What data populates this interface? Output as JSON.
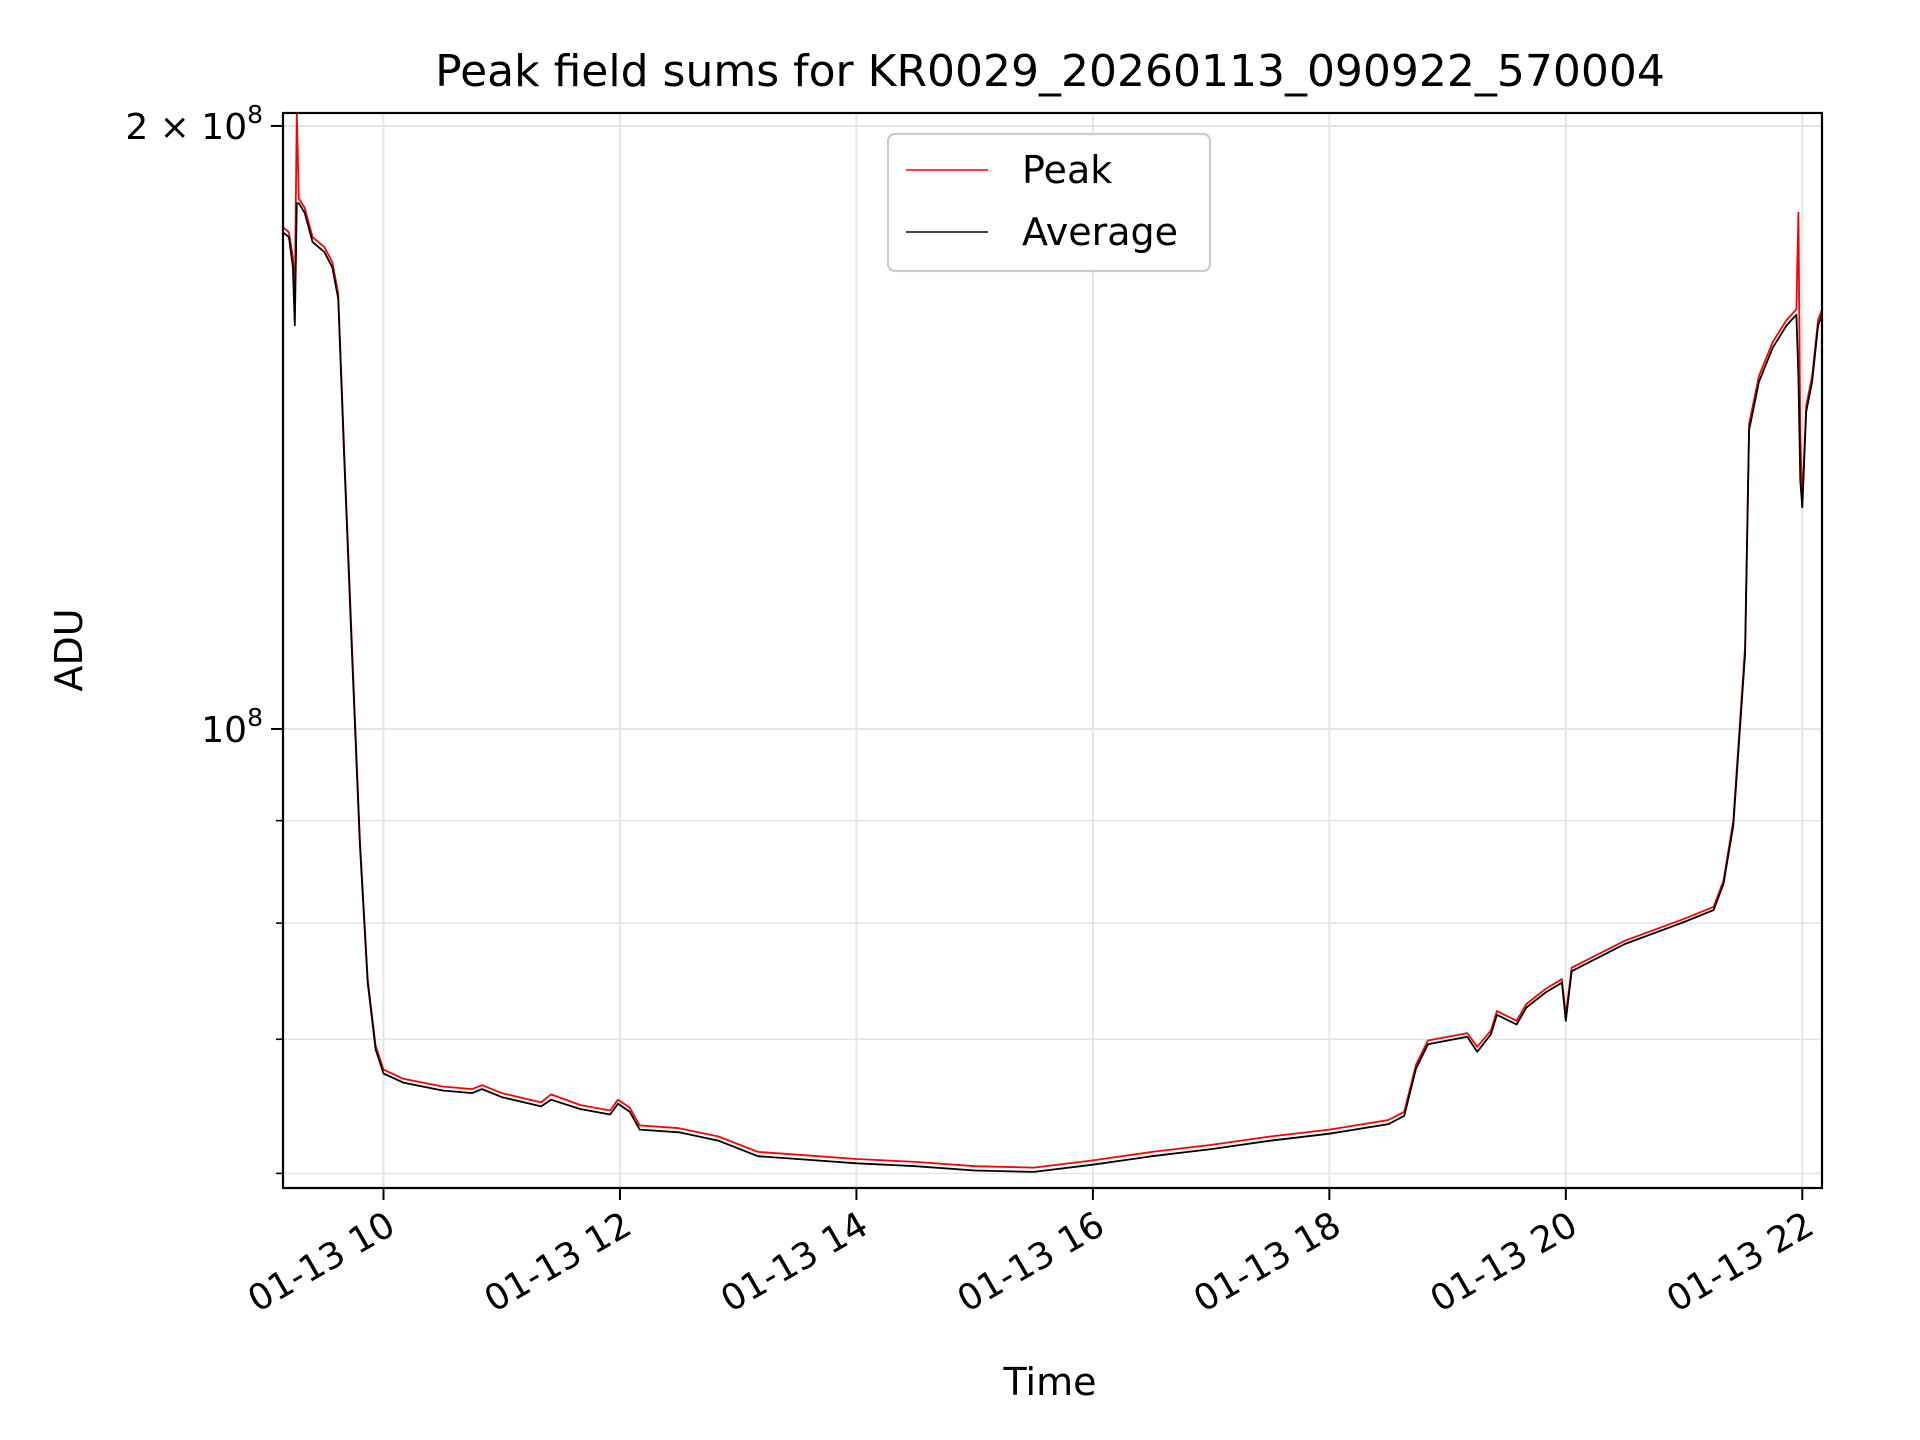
{
  "chart_data": {
    "type": "line",
    "title": "Peak field sums for KR0029_20260113_090922_570004",
    "xlabel": "Time",
    "ylabel": "ADU",
    "y_scale": "log",
    "ylim": [
      59000000,
      203000000
    ],
    "xlim": [
      "2026-01-13 09:09",
      "2026-01-13 22:10"
    ],
    "x_ticks": [
      {
        "value": "2026-01-13 10:00",
        "label": "01-13 10"
      },
      {
        "value": "2026-01-13 12:00",
        "label": "01-13 12"
      },
      {
        "value": "2026-01-13 14:00",
        "label": "01-13 14"
      },
      {
        "value": "2026-01-13 16:00",
        "label": "01-13 16"
      },
      {
        "value": "2026-01-13 18:00",
        "label": "01-13 18"
      },
      {
        "value": "2026-01-13 20:00",
        "label": "01-13 20"
      },
      {
        "value": "2026-01-13 22:00",
        "label": "01-13 22"
      }
    ],
    "y_ticks_major": [
      {
        "value": 100000000,
        "base": "10",
        "exp": "8",
        "mult": ""
      },
      {
        "value": 200000000,
        "base": "10",
        "exp": "8",
        "mult": "2 × "
      }
    ],
    "y_ticks_minor": [
      60000000,
      70000000,
      80000000,
      90000000
    ],
    "grid": true,
    "legend": {
      "position": "top-center"
    },
    "series": [
      {
        "name": "Peak",
        "color": "#ff0000",
        "points": [
          [
            "2026-01-13 09:09",
            178000000
          ],
          [
            "2026-01-13 09:12",
            177000000
          ],
          [
            "2026-01-13 09:14",
            172000000
          ],
          [
            "2026-01-13 09:15",
            165000000
          ],
          [
            "2026-01-13 09:16",
            203000000
          ],
          [
            "2026-01-13 09:17",
            184000000
          ],
          [
            "2026-01-13 09:20",
            182000000
          ],
          [
            "2026-01-13 09:24",
            176000000
          ],
          [
            "2026-01-13 09:30",
            174000000
          ],
          [
            "2026-01-13 09:34",
            171000000
          ],
          [
            "2026-01-13 09:37",
            165000000
          ],
          [
            "2026-01-13 09:40",
            138000000
          ],
          [
            "2026-01-13 09:44",
            110000000
          ],
          [
            "2026-01-13 09:48",
            88000000
          ],
          [
            "2026-01-13 09:52",
            75000000
          ],
          [
            "2026-01-13 09:56",
            69500000
          ],
          [
            "2026-01-13 10:00",
            67600000
          ],
          [
            "2026-01-13 10:10",
            66900000
          ],
          [
            "2026-01-13 10:30",
            66300000
          ],
          [
            "2026-01-13 10:45",
            66100000
          ],
          [
            "2026-01-13 10:50",
            66400000
          ],
          [
            "2026-01-13 11:00",
            65800000
          ],
          [
            "2026-01-13 11:20",
            65100000
          ],
          [
            "2026-01-13 11:25",
            65700000
          ],
          [
            "2026-01-13 11:40",
            64900000
          ],
          [
            "2026-01-13 11:55",
            64500000
          ],
          [
            "2026-01-13 11:59",
            65300000
          ],
          [
            "2026-01-13 12:05",
            64700000
          ],
          [
            "2026-01-13 12:10",
            63400000
          ],
          [
            "2026-01-13 12:30",
            63200000
          ],
          [
            "2026-01-13 12:50",
            62600000
          ],
          [
            "2026-01-13 13:10",
            61500000
          ],
          [
            "2026-01-13 13:30",
            61300000
          ],
          [
            "2026-01-13 14:00",
            61000000
          ],
          [
            "2026-01-13 14:30",
            60800000
          ],
          [
            "2026-01-13 15:00",
            60500000
          ],
          [
            "2026-01-13 15:30",
            60400000
          ],
          [
            "2026-01-13 16:00",
            60900000
          ],
          [
            "2026-01-13 16:30",
            61500000
          ],
          [
            "2026-01-13 17:00",
            62000000
          ],
          [
            "2026-01-13 17:30",
            62600000
          ],
          [
            "2026-01-13 18:00",
            63100000
          ],
          [
            "2026-01-13 18:30",
            63800000
          ],
          [
            "2026-01-13 18:38",
            64400000
          ],
          [
            "2026-01-13 18:44",
            68000000
          ],
          [
            "2026-01-13 18:50",
            69900000
          ],
          [
            "2026-01-13 19:10",
            70500000
          ],
          [
            "2026-01-13 19:15",
            69400000
          ],
          [
            "2026-01-13 19:22",
            70700000
          ],
          [
            "2026-01-13 19:25",
            72300000
          ],
          [
            "2026-01-13 19:35",
            71500000
          ],
          [
            "2026-01-13 19:40",
            72900000
          ],
          [
            "2026-01-13 19:50",
            74200000
          ],
          [
            "2026-01-13 19:58",
            75000000
          ],
          [
            "2026-01-13 20:00",
            72000000
          ],
          [
            "2026-01-13 20:03",
            76000000
          ],
          [
            "2026-01-13 20:30",
            78400000
          ],
          [
            "2026-01-13 21:00",
            80400000
          ],
          [
            "2026-01-13 21:15",
            81500000
          ],
          [
            "2026-01-13 21:20",
            84000000
          ],
          [
            "2026-01-13 21:25",
            90000000
          ],
          [
            "2026-01-13 21:31",
            110000000
          ],
          [
            "2026-01-13 21:33",
            142000000
          ],
          [
            "2026-01-13 21:38",
            150000000
          ],
          [
            "2026-01-13 21:45",
            156000000
          ],
          [
            "2026-01-13 21:52",
            160000000
          ],
          [
            "2026-01-13 21:57",
            162000000
          ],
          [
            "2026-01-13 21:58",
            181000000
          ],
          [
            "2026-01-13 21:59",
            140000000
          ],
          [
            "2026-01-13 22:00",
            130000000
          ],
          [
            "2026-01-13 22:02",
            145000000
          ],
          [
            "2026-01-13 22:05",
            150000000
          ],
          [
            "2026-01-13 22:08",
            160000000
          ],
          [
            "2026-01-13 22:10",
            162000000
          ]
        ]
      },
      {
        "name": "Average",
        "color": "#000000",
        "points": [
          [
            "2026-01-13 09:09",
            177000000
          ],
          [
            "2026-01-13 09:12",
            176000000
          ],
          [
            "2026-01-13 09:14",
            170000000
          ],
          [
            "2026-01-13 09:15",
            159000000
          ],
          [
            "2026-01-13 09:16",
            183000000
          ],
          [
            "2026-01-13 09:17",
            183000000
          ],
          [
            "2026-01-13 09:20",
            181000000
          ],
          [
            "2026-01-13 09:24",
            175000000
          ],
          [
            "2026-01-13 09:30",
            173000000
          ],
          [
            "2026-01-13 09:34",
            170000000
          ],
          [
            "2026-01-13 09:37",
            164000000
          ],
          [
            "2026-01-13 09:40",
            137000000
          ],
          [
            "2026-01-13 09:44",
            109000000
          ],
          [
            "2026-01-13 09:48",
            87500000
          ],
          [
            "2026-01-13 09:52",
            74700000
          ],
          [
            "2026-01-13 09:56",
            69200000
          ],
          [
            "2026-01-13 10:00",
            67300000
          ],
          [
            "2026-01-13 10:10",
            66600000
          ],
          [
            "2026-01-13 10:30",
            66000000
          ],
          [
            "2026-01-13 10:45",
            65800000
          ],
          [
            "2026-01-13 10:50",
            66100000
          ],
          [
            "2026-01-13 11:00",
            65500000
          ],
          [
            "2026-01-13 11:20",
            64800000
          ],
          [
            "2026-01-13 11:25",
            65300000
          ],
          [
            "2026-01-13 11:40",
            64600000
          ],
          [
            "2026-01-13 11:55",
            64200000
          ],
          [
            "2026-01-13 11:59",
            65000000
          ],
          [
            "2026-01-13 12:05",
            64400000
          ],
          [
            "2026-01-13 12:10",
            63100000
          ],
          [
            "2026-01-13 12:30",
            62900000
          ],
          [
            "2026-01-13 12:50",
            62300000
          ],
          [
            "2026-01-13 13:10",
            61200000
          ],
          [
            "2026-01-13 13:30",
            61000000
          ],
          [
            "2026-01-13 14:00",
            60700000
          ],
          [
            "2026-01-13 14:30",
            60500000
          ],
          [
            "2026-01-13 15:00",
            60200000
          ],
          [
            "2026-01-13 15:30",
            60100000
          ],
          [
            "2026-01-13 16:00",
            60600000
          ],
          [
            "2026-01-13 16:30",
            61200000
          ],
          [
            "2026-01-13 17:00",
            61700000
          ],
          [
            "2026-01-13 17:30",
            62300000
          ],
          [
            "2026-01-13 18:00",
            62800000
          ],
          [
            "2026-01-13 18:30",
            63500000
          ],
          [
            "2026-01-13 18:38",
            64100000
          ],
          [
            "2026-01-13 18:44",
            67700000
          ],
          [
            "2026-01-13 18:50",
            69600000
          ],
          [
            "2026-01-13 19:10",
            70200000
          ],
          [
            "2026-01-13 19:15",
            69000000
          ],
          [
            "2026-01-13 19:22",
            70400000
          ],
          [
            "2026-01-13 19:25",
            72000000
          ],
          [
            "2026-01-13 19:35",
            71200000
          ],
          [
            "2026-01-13 19:40",
            72600000
          ],
          [
            "2026-01-13 19:50",
            73900000
          ],
          [
            "2026-01-13 19:58",
            74700000
          ],
          [
            "2026-01-13 20:00",
            71500000
          ],
          [
            "2026-01-13 20:03",
            75700000
          ],
          [
            "2026-01-13 20:30",
            78100000
          ],
          [
            "2026-01-13 21:00",
            80100000
          ],
          [
            "2026-01-13 21:15",
            81200000
          ],
          [
            "2026-01-13 21:20",
            83700000
          ],
          [
            "2026-01-13 21:25",
            89500000
          ],
          [
            "2026-01-13 21:31",
            109000000
          ],
          [
            "2026-01-13 21:33",
            141000000
          ],
          [
            "2026-01-13 21:38",
            149000000
          ],
          [
            "2026-01-13 21:45",
            155000000
          ],
          [
            "2026-01-13 21:52",
            159000000
          ],
          [
            "2026-01-13 21:57",
            161000000
          ],
          [
            "2026-01-13 21:58",
            150000000
          ],
          [
            "2026-01-13 21:59",
            133000000
          ],
          [
            "2026-01-13 22:00",
            129000000
          ],
          [
            "2026-01-13 22:02",
            144000000
          ],
          [
            "2026-01-13 22:05",
            149000000
          ],
          [
            "2026-01-13 22:08",
            159000000
          ],
          [
            "2026-01-13 22:10",
            161000000
          ]
        ]
      }
    ]
  }
}
